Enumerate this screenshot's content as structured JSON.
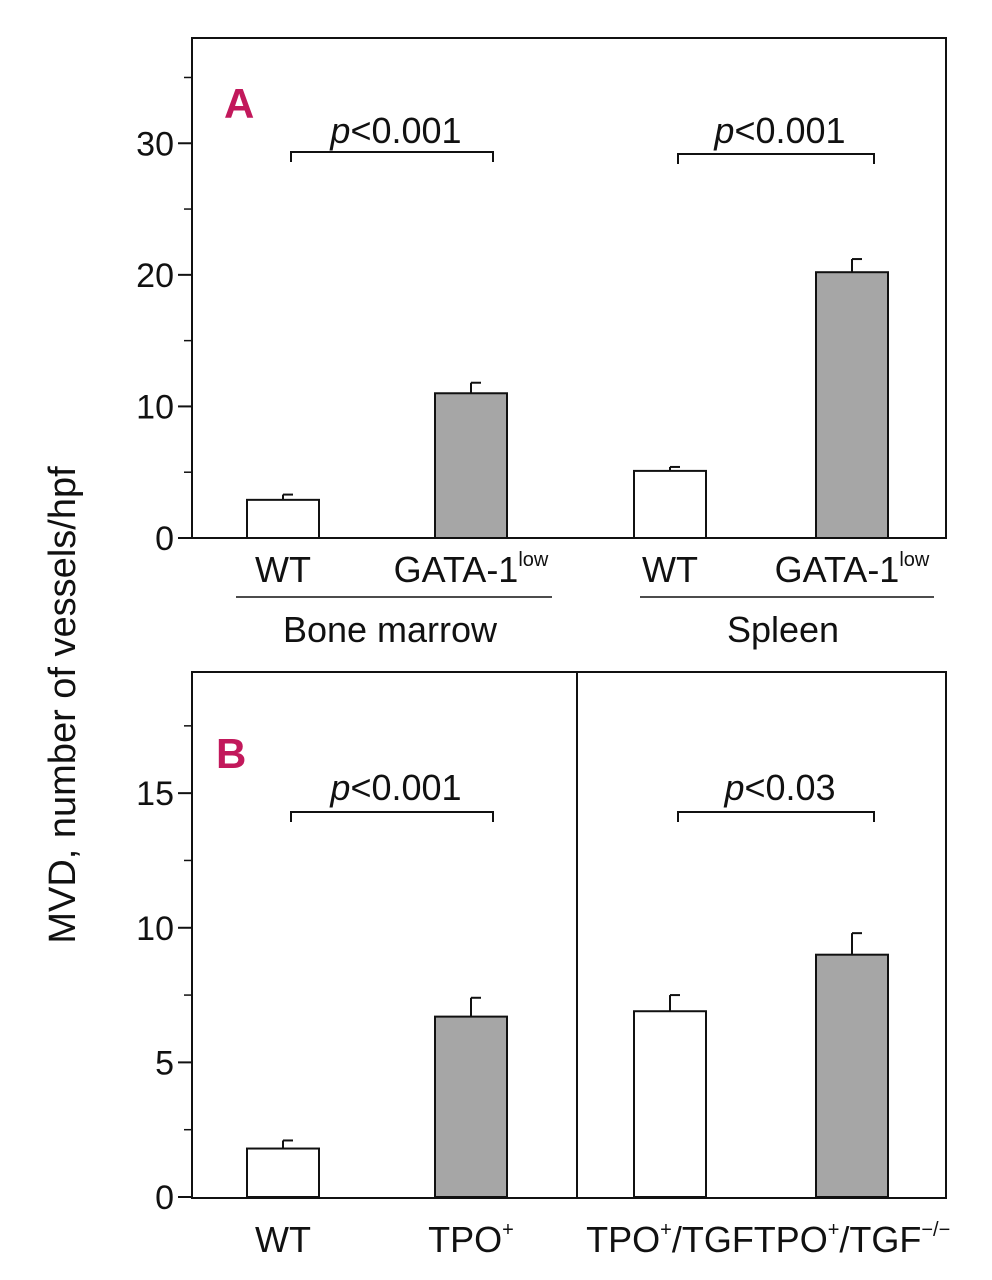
{
  "y_axis_label": "MVD, number of vessels/hpf",
  "colors": {
    "wt_bar": "#ffffff",
    "treated_bar": "#a6a6a6",
    "panel_letter": "#c2185b",
    "ink": "#111111"
  },
  "chart_data": [
    {
      "type": "bar",
      "panel": "A",
      "ylim": [
        0,
        38
      ],
      "yticks": [
        "0",
        "10",
        "20",
        "30"
      ],
      "ytick_values": [
        0,
        10,
        20,
        30
      ],
      "bars": [
        {
          "label": "WT",
          "sup": "",
          "value": 2.9,
          "error": 0.4,
          "color": "white"
        },
        {
          "label": "GATA-1",
          "sup": "low",
          "value": 11.0,
          "error": 0.8,
          "color": "gray"
        },
        {
          "label": "WT",
          "sup": "",
          "value": 5.1,
          "error": 0.3,
          "color": "white"
        },
        {
          "label": "GATA-1",
          "sup": "low",
          "value": 20.2,
          "error": 1.0,
          "color": "gray"
        }
      ],
      "groups": [
        "Bone marrow",
        "Spleen"
      ],
      "comparisons": [
        {
          "italic": "p",
          "rest": "<0.001",
          "from": 0,
          "to": 1
        },
        {
          "italic": "p",
          "rest": "<0.001",
          "from": 2,
          "to": 3
        }
      ]
    },
    {
      "type": "bar",
      "panel": "B",
      "ylim": [
        0,
        19.5
      ],
      "yticks": [
        "0",
        "5",
        "10",
        "15"
      ],
      "ytick_values": [
        0,
        5,
        10,
        15
      ],
      "bars": [
        {
          "label": "WT",
          "sup": "",
          "suffix": "",
          "value": 1.8,
          "error": 0.3,
          "color": "white"
        },
        {
          "label": "TPO",
          "sup": "+",
          "suffix": "",
          "value": 6.7,
          "error": 0.7,
          "color": "gray"
        },
        {
          "label": "TPO",
          "sup": "+",
          "suffix": "/TGF",
          "value": 6.9,
          "error": 0.6,
          "color": "white"
        },
        {
          "label": "TPO",
          "sup": "+",
          "suffix": "/TGF",
          "sup2": "−/−",
          "value": 9.0,
          "error": 0.8,
          "color": "gray"
        }
      ],
      "comparisons": [
        {
          "italic": "p",
          "rest": "<0.001",
          "from": 0,
          "to": 1
        },
        {
          "italic": "p",
          "rest": "<0.03",
          "from": 2,
          "to": 3
        }
      ]
    }
  ]
}
